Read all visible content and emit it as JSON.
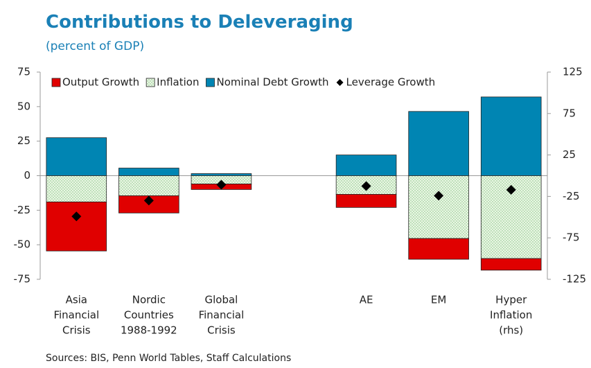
{
  "chart_data": {
    "type": "bar",
    "title": "Contributions to Deleveraging",
    "subtitle": "(percent of GDP)",
    "source": "Sources: BIS, Penn World Tables, Staff Calculations",
    "categories": [
      [
        "Asia",
        "Financial",
        "Crisis"
      ],
      [
        "Nordic",
        "Countries",
        "1988-1992"
      ],
      [
        "Global",
        "Financial",
        "Crisis"
      ],
      null,
      [
        "AE"
      ],
      [
        "EM"
      ],
      [
        "Hyper",
        "Inflation",
        "(rhs)"
      ]
    ],
    "ylim": [
      -75,
      75
    ],
    "yticks": [
      -75,
      -50,
      -25,
      0,
      25,
      50,
      75
    ],
    "y2lim": [
      -125,
      125
    ],
    "y2ticks": [
      -125,
      -75,
      -25,
      25,
      75,
      125
    ],
    "series": [
      {
        "name": "Output Growth",
        "color": "#e00000",
        "values": [
          -35.5,
          -12.5,
          -4,
          null,
          -9.5,
          -15,
          null
        ]
      },
      {
        "name": "Inflation",
        "color": "#eaf6e4",
        "pattern": "dotted",
        "values": [
          -19,
          -14.5,
          -6,
          null,
          -13.5,
          -45.5,
          null
        ]
      },
      {
        "name": "Nominal Debt Growth",
        "color": "#0085b3",
        "values": [
          27.5,
          5.5,
          1.5,
          null,
          15,
          46.5,
          null
        ]
      },
      {
        "name": "Leverage Growth",
        "color": "#000000",
        "marker": "diamond",
        "values": [
          -29.5,
          -18,
          -6.5,
          null,
          -7.5,
          -14.5,
          null
        ]
      },
      {
        "name": "Output Growth",
        "color": "#e00000",
        "axis": "y2",
        "values": [
          null,
          null,
          null,
          null,
          null,
          null,
          -14
        ]
      },
      {
        "name": "Inflation",
        "color": "#eaf6e4",
        "pattern": "dotted",
        "axis": "y2",
        "values": [
          null,
          null,
          null,
          null,
          null,
          null,
          -100
        ]
      },
      {
        "name": "Nominal Debt Growth",
        "color": "#0085b3",
        "axis": "y2",
        "values": [
          null,
          null,
          null,
          null,
          null,
          null,
          95
        ]
      },
      {
        "name": "Leverage Growth",
        "color": "#000000",
        "marker": "diamond",
        "axis": "y2",
        "values": [
          null,
          null,
          null,
          null,
          null,
          null,
          -17
        ]
      }
    ]
  }
}
